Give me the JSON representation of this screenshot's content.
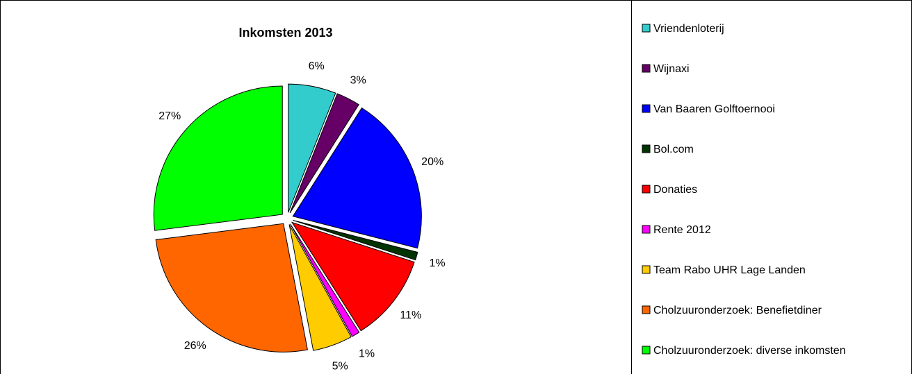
{
  "chart_data": {
    "type": "pie",
    "title": "Inkomsten 2013",
    "legend_position": "right",
    "slices": [
      {
        "name": "Vriendenloterij",
        "value": 6,
        "label": "6%",
        "color": "#33CCCC"
      },
      {
        "name": "Wijnaxi",
        "value": 3,
        "label": "3%",
        "color": "#660066"
      },
      {
        "name": "Van Baaren Golftoernooi",
        "value": 20,
        "label": "20%",
        "color": "#0000FF"
      },
      {
        "name": "Bol.com",
        "value": 1,
        "label": "1%",
        "color": "#003300"
      },
      {
        "name": "Donaties",
        "value": 11,
        "label": "11%",
        "color": "#FF0000"
      },
      {
        "name": "Rente 2012",
        "value": 1,
        "label": "1%",
        "color": "#FF00FF"
      },
      {
        "name": "Team Rabo UHR Lage Landen",
        "value": 5,
        "label": "5%",
        "color": "#FFCC00"
      },
      {
        "name": "Cholzuuronderzoek: Benefietdiner",
        "value": 26,
        "label": "26%",
        "color": "#FF6600"
      },
      {
        "name": "Cholzuuronderzoek: diverse inkomsten",
        "value": 27,
        "label": "27%",
        "color": "#00FF00"
      }
    ]
  }
}
